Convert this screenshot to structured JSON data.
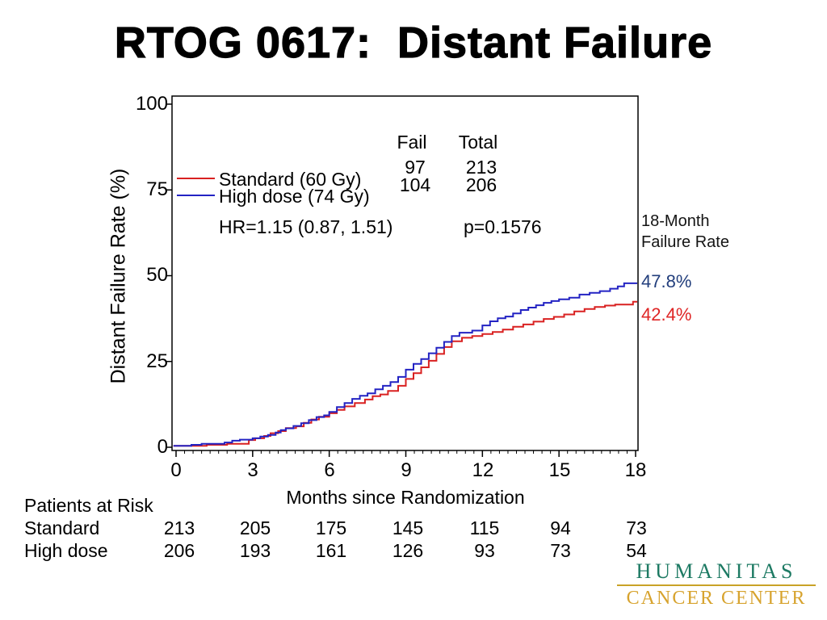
{
  "slide": {
    "title": "RTOG 0617:  Distant Failure"
  },
  "chart_data": {
    "type": "line",
    "subtype": "kaplan-meier-step",
    "xlabel": "Months since Randomization",
    "ylabel": "Distant Failure Rate (%)",
    "xlim": [
      0,
      18
    ],
    "ylim": [
      0,
      100
    ],
    "grid": false,
    "x_ticks": [
      "0",
      "3",
      "6",
      "9",
      "12",
      "15",
      "18"
    ],
    "y_ticks": [
      "100",
      "75",
      "50",
      "25",
      "0"
    ],
    "fail_header": "Fail",
    "total_header": "Total",
    "stats": {
      "hr": "HR=1.15 (0.87, 1.51)",
      "p": "p=0.1576"
    },
    "annotation": {
      "title_line1": "18-Month",
      "title_line2": "Failure Rate",
      "high_dose_value": "47.8%",
      "high_dose_color": "#223e7c",
      "standard_value": "42.4%",
      "standard_color": "#df2525"
    },
    "series": [
      {
        "name": "Standard (60 Gy)",
        "color": "#d92121",
        "fail": "97",
        "total": "213",
        "final_pct": 42.4,
        "points": [
          [
            -0.1,
            0.4
          ],
          [
            1.2,
            0.7
          ],
          [
            2.0,
            1.0
          ],
          [
            2.85,
            2.1
          ],
          [
            3.1,
            2.6
          ],
          [
            3.45,
            3.3
          ],
          [
            3.7,
            4.1
          ],
          [
            4.0,
            4.7
          ],
          [
            4.3,
            5.6
          ],
          [
            4.7,
            6.1
          ],
          [
            5.0,
            7.1
          ],
          [
            5.3,
            8.1
          ],
          [
            5.6,
            8.9
          ],
          [
            6.0,
            9.9
          ],
          [
            6.3,
            10.9
          ],
          [
            6.6,
            11.9
          ],
          [
            7.0,
            12.9
          ],
          [
            7.4,
            13.9
          ],
          [
            7.7,
            14.9
          ],
          [
            8.0,
            15.4
          ],
          [
            8.3,
            16.4
          ],
          [
            8.7,
            17.9
          ],
          [
            9.0,
            19.9
          ],
          [
            9.3,
            21.6
          ],
          [
            9.6,
            23.3
          ],
          [
            9.9,
            25.2
          ],
          [
            10.2,
            27.2
          ],
          [
            10.5,
            29.2
          ],
          [
            10.8,
            30.9
          ],
          [
            11.2,
            31.9
          ],
          [
            11.6,
            32.4
          ],
          [
            12.0,
            33.0
          ],
          [
            12.4,
            33.6
          ],
          [
            12.8,
            34.3
          ],
          [
            13.2,
            35.1
          ],
          [
            13.6,
            35.8
          ],
          [
            14.0,
            36.6
          ],
          [
            14.4,
            37.4
          ],
          [
            14.8,
            38.0
          ],
          [
            15.2,
            38.7
          ],
          [
            15.6,
            39.6
          ],
          [
            16.0,
            40.3
          ],
          [
            16.4,
            40.9
          ],
          [
            16.8,
            41.3
          ],
          [
            17.2,
            41.6
          ],
          [
            17.9,
            42.4
          ],
          [
            18.12,
            42.4
          ]
        ]
      },
      {
        "name": "High dose (74 Gy)",
        "color": "#2323c3",
        "fail": "104",
        "total": "206",
        "final_pct": 47.8,
        "points": [
          [
            -0.1,
            0.4
          ],
          [
            0.6,
            0.7
          ],
          [
            1.0,
            1.0
          ],
          [
            1.9,
            1.4
          ],
          [
            2.2,
            1.9
          ],
          [
            2.5,
            2.2
          ],
          [
            3.0,
            2.6
          ],
          [
            3.3,
            3.1
          ],
          [
            3.6,
            3.6
          ],
          [
            3.9,
            4.3
          ],
          [
            4.1,
            5.0
          ],
          [
            4.3,
            5.5
          ],
          [
            4.6,
            6.2
          ],
          [
            4.9,
            7.0
          ],
          [
            5.2,
            7.9
          ],
          [
            5.5,
            8.8
          ],
          [
            5.8,
            9.3
          ],
          [
            6.0,
            10.3
          ],
          [
            6.3,
            11.7
          ],
          [
            6.6,
            12.9
          ],
          [
            6.9,
            14.1
          ],
          [
            7.2,
            15.0
          ],
          [
            7.5,
            15.7
          ],
          [
            7.8,
            16.9
          ],
          [
            8.1,
            17.9
          ],
          [
            8.4,
            19.0
          ],
          [
            8.7,
            20.5
          ],
          [
            9.0,
            22.6
          ],
          [
            9.3,
            24.3
          ],
          [
            9.6,
            25.7
          ],
          [
            9.9,
            27.4
          ],
          [
            10.2,
            29.0
          ],
          [
            10.5,
            30.7
          ],
          [
            10.8,
            32.4
          ],
          [
            11.1,
            33.4
          ],
          [
            11.6,
            34.0
          ],
          [
            12.0,
            35.5
          ],
          [
            12.3,
            36.7
          ],
          [
            12.6,
            37.6
          ],
          [
            12.9,
            38.1
          ],
          [
            13.2,
            39.0
          ],
          [
            13.5,
            40.0
          ],
          [
            13.8,
            40.7
          ],
          [
            14.1,
            41.4
          ],
          [
            14.4,
            42.1
          ],
          [
            14.7,
            42.6
          ],
          [
            15.0,
            43.1
          ],
          [
            15.4,
            43.6
          ],
          [
            15.8,
            44.5
          ],
          [
            16.2,
            45.0
          ],
          [
            16.6,
            45.5
          ],
          [
            17.0,
            46.2
          ],
          [
            17.3,
            46.9
          ],
          [
            17.55,
            47.8
          ],
          [
            18.12,
            47.8
          ]
        ]
      }
    ]
  },
  "risk_table": {
    "title": "Patients at Risk",
    "rows": [
      {
        "label": "Standard",
        "values": [
          "213",
          "205",
          "175",
          "145",
          "115",
          "94",
          "73"
        ]
      },
      {
        "label": "High dose",
        "values": [
          "206",
          "193",
          "161",
          "126",
          "93",
          "73",
          "54"
        ]
      }
    ]
  },
  "logo": {
    "line1": "HUMANITAS",
    "line2": "CANCER CENTER",
    "color1": "#1d7a63",
    "color2": "#d7a32e",
    "rule_color": "#c9a227"
  }
}
